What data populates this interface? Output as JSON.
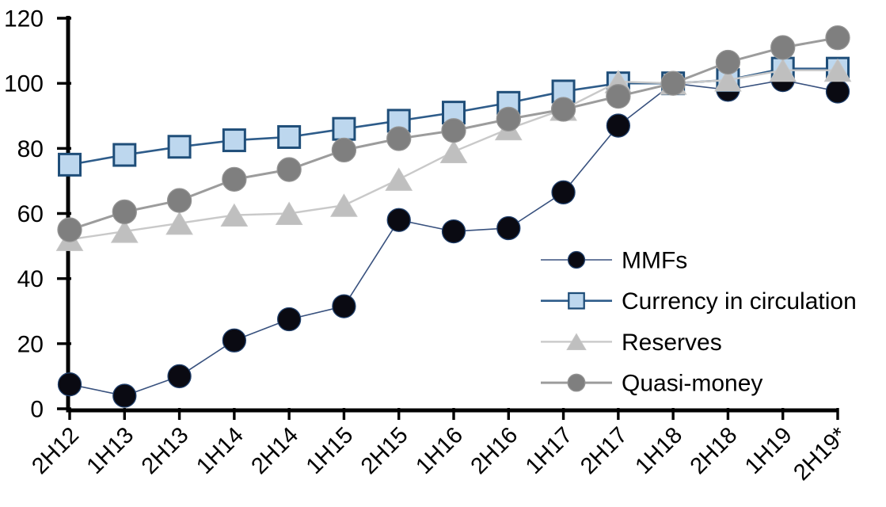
{
  "chart_data": {
    "type": "line",
    "title": "",
    "xlabel": "",
    "ylabel": "",
    "ylim": [
      0,
      120
    ],
    "yticks": [
      0,
      20,
      40,
      60,
      80,
      100,
      120
    ],
    "grid": false,
    "legend_position": "inside-center-right",
    "index_note": "all series equal 100 at 1H18",
    "categories": [
      "2H12",
      "1H13",
      "2H13",
      "1H14",
      "2H14",
      "1H15",
      "2H15",
      "1H16",
      "2H16",
      "1H17",
      "2H17",
      "1H18",
      "2H18",
      "1H19",
      "2H19*"
    ],
    "series": [
      {
        "name": "MMFs",
        "marker": "circle",
        "marker_size": 29,
        "line_width": 1.6,
        "colors": {
          "line": "#38517e",
          "fill": "#0a0a12",
          "stroke": "#203f6b"
        },
        "values": [
          7.5,
          4,
          10,
          21,
          27.5,
          31.5,
          58,
          54.5,
          55.5,
          66.5,
          87,
          100,
          98,
          101,
          97.5
        ]
      },
      {
        "name": "Currency in circulation",
        "marker": "square",
        "marker_size": 27,
        "line_width": 2.6,
        "colors": {
          "line": "#2e5c8a",
          "fill": "#bdd7ee",
          "stroke": "#1f4e79"
        },
        "values": [
          75,
          78,
          80.5,
          82.5,
          83.5,
          86,
          88.5,
          91,
          94,
          97.5,
          100,
          100,
          101,
          104.5,
          104.5
        ]
      },
      {
        "name": "Reserves",
        "marker": "triangle",
        "marker_size": 28,
        "line_width": 2.4,
        "colors": {
          "line": "#c9c9c9",
          "fill": "#bfbfbf",
          "stroke": "#c6c6c6"
        },
        "values": [
          52,
          54.5,
          57,
          59.5,
          60,
          62.5,
          70.5,
          79,
          86,
          92,
          100.5,
          100,
          101,
          104,
          104
        ]
      },
      {
        "name": "Quasi-money",
        "marker": "circle",
        "marker_size": 30,
        "line_width": 3,
        "colors": {
          "line": "#9c9c9c",
          "fill": "#7f7f7f",
          "stroke": "#949494"
        },
        "values": [
          55,
          60.5,
          64,
          70.5,
          73.5,
          79.5,
          83,
          85.5,
          89,
          92,
          96,
          100,
          106.5,
          111,
          114
        ]
      }
    ],
    "axis_color": "#000000",
    "background_color": "#ffffff"
  }
}
